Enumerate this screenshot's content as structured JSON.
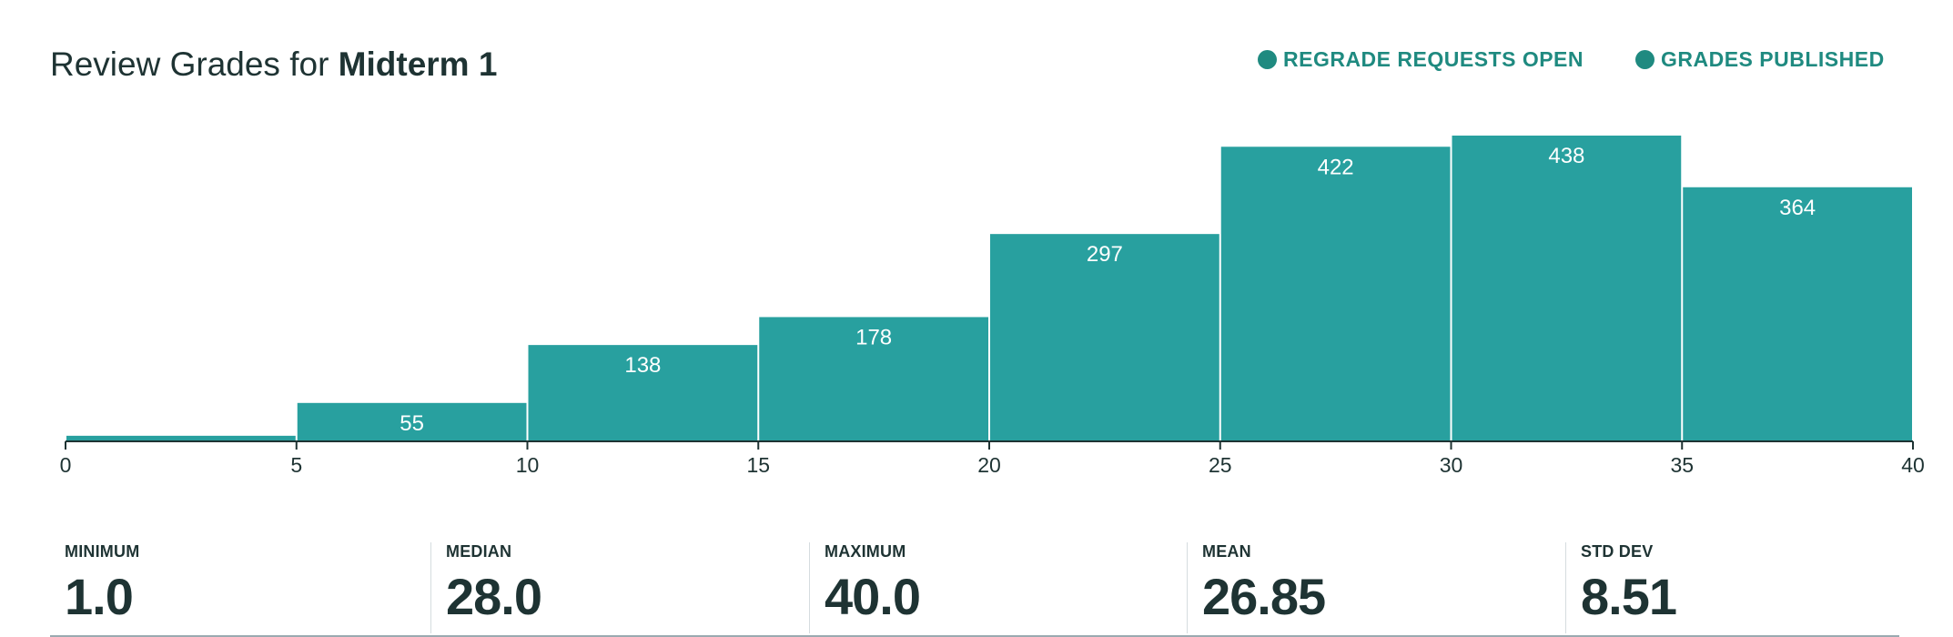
{
  "header": {
    "title_prefix": "Review Grades for",
    "title_assignment": "Midterm 1"
  },
  "status": {
    "regrade_label": "REGRADE REQUESTS OPEN",
    "published_label": "GRADES PUBLISHED",
    "color": "#1f8a80"
  },
  "chart_data": {
    "type": "bar",
    "x_ticks": [
      "0",
      "5",
      "10",
      "15",
      "20",
      "25",
      "30",
      "35",
      "40"
    ],
    "bins": [
      {
        "start": 0,
        "end": 5,
        "value": 8,
        "label": ""
      },
      {
        "start": 5,
        "end": 10,
        "value": 55,
        "label": "55"
      },
      {
        "start": 10,
        "end": 15,
        "value": 138,
        "label": "138"
      },
      {
        "start": 15,
        "end": 20,
        "value": 178,
        "label": "178"
      },
      {
        "start": 20,
        "end": 25,
        "value": 297,
        "label": "297"
      },
      {
        "start": 25,
        "end": 30,
        "value": 422,
        "label": "422"
      },
      {
        "start": 30,
        "end": 35,
        "value": 438,
        "label": "438"
      },
      {
        "start": 35,
        "end": 40,
        "value": 364,
        "label": "364"
      }
    ],
    "xlim": [
      0,
      40
    ],
    "ylim": [
      0,
      438
    ],
    "bar_color": "#28a09f",
    "grid": false
  },
  "stats": [
    {
      "label": "MINIMUM",
      "value": "1.0"
    },
    {
      "label": "MEDIAN",
      "value": "28.0"
    },
    {
      "label": "MAXIMUM",
      "value": "40.0"
    },
    {
      "label": "MEAN",
      "value": "26.85"
    },
    {
      "label": "STD DEV",
      "value": "8.51"
    }
  ]
}
